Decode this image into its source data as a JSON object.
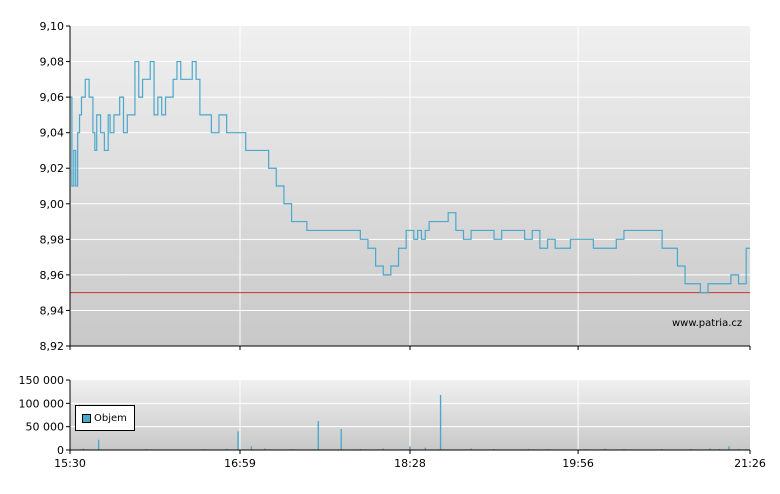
{
  "watermark": "www.patria.cz",
  "colors": {
    "price_line": "#4aa8cc",
    "reference_line": "#cc3333",
    "volume_bar": "#4aa8cc",
    "grid": "#ffffff"
  },
  "chart_data": [
    {
      "type": "line",
      "title": "",
      "ylim": [
        8.92,
        9.1
      ],
      "yticks": [
        "9,10",
        "9,08",
        "9,06",
        "9,04",
        "9,02",
        "9,00",
        "8,98",
        "8,96",
        "8,94",
        "8,92"
      ],
      "xticks": [
        "15:30",
        "16:59",
        "18:28",
        "19:56",
        "21:26"
      ],
      "reference_value": 8.95,
      "grid": true,
      "series": [
        {
          "x": [
            "15:30",
            "15:31",
            "15:32",
            "15:33",
            "15:34",
            "15:35",
            "15:36",
            "15:38",
            "15:40",
            "15:42",
            "15:43",
            "15:44",
            "15:46",
            "15:48",
            "15:50",
            "15:51",
            "15:53",
            "15:55",
            "15:56",
            "15:58",
            "16:00",
            "16:02",
            "16:04",
            "16:06",
            "16:08",
            "16:10",
            "16:12",
            "16:14",
            "16:16",
            "16:18",
            "16:20",
            "16:22",
            "16:24",
            "16:26",
            "16:28",
            "16:30",
            "16:32",
            "16:34",
            "16:36",
            "16:38",
            "16:40",
            "16:42",
            "16:44",
            "16:46",
            "16:48",
            "16:50",
            "16:52",
            "16:54",
            "16:56",
            "16:58",
            "17:00",
            "17:02",
            "17:06",
            "17:10",
            "17:14",
            "17:18",
            "17:22",
            "17:26",
            "17:30",
            "17:34",
            "17:38",
            "17:42",
            "17:46",
            "17:50",
            "17:54",
            "17:58",
            "18:02",
            "18:06",
            "18:10",
            "18:14",
            "18:18",
            "18:22",
            "18:26",
            "18:28",
            "18:30",
            "18:32",
            "18:34",
            "18:36",
            "18:38",
            "18:40",
            "18:44",
            "18:48",
            "18:52",
            "18:56",
            "19:00",
            "19:04",
            "19:08",
            "19:12",
            "19:16",
            "19:20",
            "19:24",
            "19:28",
            "19:32",
            "19:36",
            "19:40",
            "19:44",
            "19:48",
            "19:52",
            "19:56",
            "20:00",
            "20:04",
            "20:08",
            "20:12",
            "20:16",
            "20:20",
            "20:24",
            "20:28",
            "20:32",
            "20:36",
            "20:40",
            "20:44",
            "20:48",
            "20:52",
            "20:56",
            "21:00",
            "21:04",
            "21:08",
            "21:12",
            "21:16",
            "21:20",
            "21:24",
            "21:26"
          ],
          "values": [
            9.06,
            9.01,
            9.03,
            9.01,
            9.04,
            9.05,
            9.06,
            9.07,
            9.06,
            9.04,
            9.03,
            9.05,
            9.04,
            9.03,
            9.05,
            9.04,
            9.05,
            9.05,
            9.06,
            9.04,
            9.05,
            9.05,
            9.08,
            9.06,
            9.07,
            9.07,
            9.08,
            9.05,
            9.06,
            9.05,
            9.06,
            9.06,
            9.07,
            9.08,
            9.07,
            9.07,
            9.07,
            9.08,
            9.07,
            9.05,
            9.05,
            9.05,
            9.04,
            9.04,
            9.05,
            9.05,
            9.04,
            9.04,
            9.04,
            9.04,
            9.04,
            9.03,
            9.03,
            9.03,
            9.02,
            9.01,
            9.0,
            8.99,
            8.99,
            8.985,
            8.985,
            8.985,
            8.985,
            8.985,
            8.985,
            8.985,
            8.98,
            8.975,
            8.965,
            8.96,
            8.965,
            8.975,
            8.985,
            8.985,
            8.98,
            8.985,
            8.98,
            8.985,
            8.99,
            8.99,
            8.99,
            8.995,
            8.985,
            8.98,
            8.985,
            8.985,
            8.985,
            8.98,
            8.985,
            8.985,
            8.985,
            8.98,
            8.985,
            8.975,
            8.98,
            8.975,
            8.975,
            8.98,
            8.98,
            8.98,
            8.975,
            8.975,
            8.975,
            8.98,
            8.985,
            8.985,
            8.985,
            8.985,
            8.985,
            8.975,
            8.975,
            8.965,
            8.955,
            8.955,
            8.95,
            8.955,
            8.955,
            8.955,
            8.96,
            8.955,
            8.975,
            8.975
          ]
        }
      ]
    },
    {
      "type": "bar",
      "title": "",
      "ylim": [
        0,
        150000
      ],
      "yticks": [
        "150 000",
        "100 000",
        "50 000",
        "0"
      ],
      "xticks": [
        "15:30",
        "16:59",
        "18:28",
        "19:56",
        "21:26"
      ],
      "legend": [
        "Objem"
      ],
      "legend_position": "top-left",
      "grid": true,
      "series": [
        {
          "name": "Objem",
          "x": [
            "15:30",
            "15:37",
            "15:45",
            "16:10",
            "16:40",
            "16:52",
            "16:58",
            "17:05",
            "17:12",
            "17:26",
            "17:40",
            "17:52",
            "18:02",
            "18:14",
            "18:24",
            "18:28",
            "18:36",
            "18:44",
            "19:00",
            "19:12",
            "19:30",
            "19:40",
            "20:00",
            "20:10",
            "20:20",
            "20:40",
            "20:55",
            "21:05",
            "21:10",
            "21:15",
            "21:20",
            "21:24"
          ],
          "values": [
            3000,
            3000,
            22000,
            2000,
            1500,
            2500,
            40000,
            8000,
            3000,
            2000,
            62000,
            45000,
            2000,
            3000,
            1500,
            8000,
            5000,
            118000,
            3000,
            2000,
            2000,
            2000,
            2000,
            3000,
            2000,
            2000,
            2000,
            3000,
            2000,
            8000,
            2000,
            2000
          ]
        }
      ]
    }
  ]
}
